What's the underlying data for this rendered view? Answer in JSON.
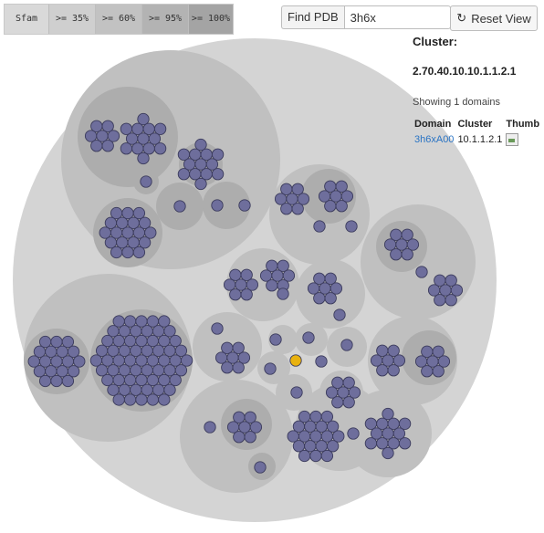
{
  "filters": [
    {
      "label": "Sfam",
      "color": "#d9d9d9"
    },
    {
      "label": ">= 35%",
      "color": "#cfcfcf"
    },
    {
      "label": ">= 60%",
      "color": "#c2c2c2"
    },
    {
      "label": ">= 95%",
      "color": "#b3b3b3"
    },
    {
      "label": ">= 100%",
      "color": "#a4a4a4"
    }
  ],
  "search": {
    "label": "Find PDB",
    "value": "3h6x"
  },
  "reset": {
    "label": "Reset View",
    "icon": "refresh-icon"
  },
  "info": {
    "heading": "Cluster:",
    "cluster_id": "2.70.40.10.10.1.1.2.1",
    "showing": "Showing 1 domains",
    "columns": [
      "Domain",
      "Cluster",
      "Thumb"
    ],
    "rows": [
      {
        "domain": "3h6xA00",
        "cluster": "10.1.1.2.1",
        "thumb": "thumbnail-image"
      }
    ]
  },
  "colors": {
    "level1": "#d4d4d4",
    "level2": "#c0c0c0",
    "level3": "#adadad",
    "level4": "#9b9b9b",
    "domain": "#6e6e9c",
    "domain_stroke": "#3b3b5c",
    "highlight": "#e9b20f"
  }
}
